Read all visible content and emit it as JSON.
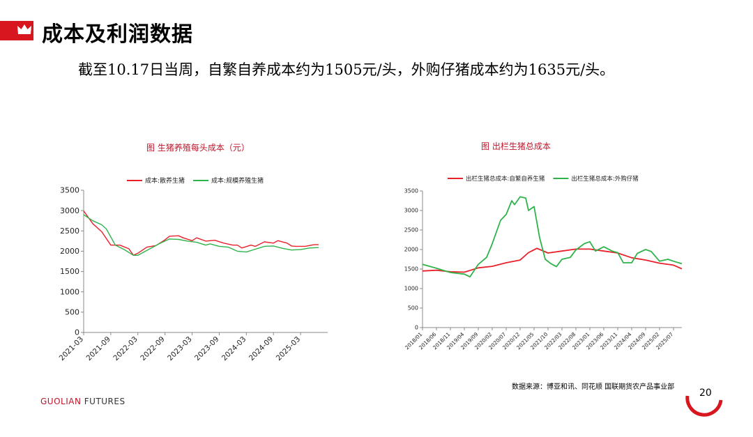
{
  "header": {
    "title": "成本及利润数据",
    "subtitle": "截至10.17日当周，自繁自养成本约为1505元/头，外购仔猪成本约为1635元/头。"
  },
  "footer": {
    "source": "数据来源：博亚和讯、同花顺  国联期货农产品事业部",
    "brand_main": "GUOLIAN",
    "brand_rest": " FUTURES",
    "page_number": "20"
  },
  "colors": {
    "brand_red": "#d7161f",
    "series_red": "#e8202a",
    "series_green": "#2eb34b"
  },
  "chart_data": [
    {
      "type": "line",
      "title": "图  生猪养殖每头成本（元）",
      "ylim": [
        0,
        3500
      ],
      "yticks": [
        0,
        500,
        1000,
        1500,
        2000,
        2500,
        3000,
        3500
      ],
      "x_range": [
        "2021-03",
        "2025-09"
      ],
      "xticks": [
        "2021-03",
        "2021-09",
        "2022-03",
        "2022-09",
        "2023-03",
        "2023-09",
        "2024-03",
        "2024-09",
        "2025-03"
      ],
      "legend_position": "top",
      "grid": false,
      "series": [
        {
          "name": "成本:散养生猪",
          "color": "#e8202a",
          "points": [
            [
              "2021-03",
              2990
            ],
            [
              "2021-05",
              2680
            ],
            [
              "2021-07",
              2480
            ],
            [
              "2021-09",
              2150
            ],
            [
              "2021-11",
              2150
            ],
            [
              "2022-01",
              2060
            ],
            [
              "2022-02",
              1900
            ],
            [
              "2022-03",
              1950
            ],
            [
              "2022-05",
              2100
            ],
            [
              "2022-07",
              2140
            ],
            [
              "2022-09",
              2280
            ],
            [
              "2022-10",
              2370
            ],
            [
              "2022-12",
              2380
            ],
            [
              "2023-01",
              2330
            ],
            [
              "2023-03",
              2260
            ],
            [
              "2023-04",
              2330
            ],
            [
              "2023-06",
              2250
            ],
            [
              "2023-08",
              2270
            ],
            [
              "2023-10",
              2200
            ],
            [
              "2023-12",
              2150
            ],
            [
              "2024-01",
              2150
            ],
            [
              "2024-02",
              2080
            ],
            [
              "2024-04",
              2150
            ],
            [
              "2024-05",
              2120
            ],
            [
              "2024-07",
              2230
            ],
            [
              "2024-09",
              2200
            ],
            [
              "2024-10",
              2260
            ],
            [
              "2024-12",
              2200
            ],
            [
              "2025-01",
              2130
            ],
            [
              "2025-02",
              2120
            ],
            [
              "2025-04",
              2120
            ],
            [
              "2025-06",
              2160
            ],
            [
              "2025-07",
              2160
            ]
          ]
        },
        {
          "name": "成本:规模养殖生猪",
          "color": "#2eb34b",
          "points": [
            [
              "2021-03",
              2900
            ],
            [
              "2021-05",
              2750
            ],
            [
              "2021-07",
              2650
            ],
            [
              "2021-08",
              2550
            ],
            [
              "2021-09",
              2350
            ],
            [
              "2021-10",
              2150
            ],
            [
              "2021-12",
              2040
            ],
            [
              "2022-02",
              1900
            ],
            [
              "2022-03",
              1900
            ],
            [
              "2022-06",
              2080
            ],
            [
              "2022-08",
              2200
            ],
            [
              "2022-10",
              2300
            ],
            [
              "2022-12",
              2290
            ],
            [
              "2023-02",
              2250
            ],
            [
              "2023-04",
              2220
            ],
            [
              "2023-06",
              2150
            ],
            [
              "2023-07",
              2180
            ],
            [
              "2023-09",
              2120
            ],
            [
              "2023-11",
              2100
            ],
            [
              "2024-01",
              2000
            ],
            [
              "2024-03",
              1980
            ],
            [
              "2024-05",
              2050
            ],
            [
              "2024-07",
              2120
            ],
            [
              "2024-09",
              2130
            ],
            [
              "2024-11",
              2070
            ],
            [
              "2025-01",
              2030
            ],
            [
              "2025-03",
              2040
            ],
            [
              "2025-05",
              2080
            ],
            [
              "2025-07",
              2090
            ]
          ]
        }
      ]
    },
    {
      "type": "line",
      "title": "图    出栏生猪总成本",
      "ylim": [
        0,
        3500
      ],
      "yticks": [
        0,
        500,
        1000,
        1500,
        2000,
        2500,
        3000,
        3500
      ],
      "x_range": [
        "2018-01",
        "2025-10"
      ],
      "xticks": [
        "2018/01",
        "2018/06",
        "2018/11",
        "2019/04",
        "2019/09",
        "2020/02",
        "2020/07",
        "2020/12",
        "2021/05",
        "2021/10",
        "2022/03",
        "2022/08",
        "2023/01",
        "2023/06",
        "2023/11",
        "2024/04",
        "2024/09",
        "2025/02",
        "2025/07"
      ],
      "legend_position": "top",
      "grid": false,
      "series": [
        {
          "name": "出栏生猪总成本:自繁自养生猪",
          "color": "#e8202a",
          "points": [
            [
              "2018-01",
              1450
            ],
            [
              "2018-06",
              1470
            ],
            [
              "2018-11",
              1430
            ],
            [
              "2019-04",
              1420
            ],
            [
              "2019-09",
              1530
            ],
            [
              "2020-02",
              1570
            ],
            [
              "2020-07",
              1660
            ],
            [
              "2020-12",
              1730
            ],
            [
              "2021-03",
              1920
            ],
            [
              "2021-06",
              2030
            ],
            [
              "2021-10",
              1910
            ],
            [
              "2022-03",
              1960
            ],
            [
              "2022-08",
              2010
            ],
            [
              "2023-01",
              2010
            ],
            [
              "2023-06",
              1960
            ],
            [
              "2023-11",
              1910
            ],
            [
              "2024-04",
              1790
            ],
            [
              "2024-09",
              1730
            ],
            [
              "2025-02",
              1650
            ],
            [
              "2025-07",
              1600
            ],
            [
              "2025-10",
              1505
            ]
          ]
        },
        {
          "name": "出栏生猪总成本:外购仔猪",
          "color": "#2eb34b",
          "points": [
            [
              "2018-01",
              1620
            ],
            [
              "2018-06",
              1520
            ],
            [
              "2018-11",
              1410
            ],
            [
              "2019-04",
              1370
            ],
            [
              "2019-06",
              1300
            ],
            [
              "2019-09",
              1620
            ],
            [
              "2019-12",
              1800
            ],
            [
              "2020-02",
              2150
            ],
            [
              "2020-05",
              2750
            ],
            [
              "2020-07",
              2900
            ],
            [
              "2020-09",
              3250
            ],
            [
              "2020-10",
              3150
            ],
            [
              "2020-12",
              3350
            ],
            [
              "2021-02",
              3320
            ],
            [
              "2021-03",
              3000
            ],
            [
              "2021-05",
              3100
            ],
            [
              "2021-07",
              2300
            ],
            [
              "2021-09",
              1750
            ],
            [
              "2021-11",
              1640
            ],
            [
              "2022-01",
              1560
            ],
            [
              "2022-03",
              1750
            ],
            [
              "2022-06",
              1800
            ],
            [
              "2022-08",
              1990
            ],
            [
              "2022-11",
              2150
            ],
            [
              "2023-01",
              2200
            ],
            [
              "2023-03",
              1960
            ],
            [
              "2023-06",
              2070
            ],
            [
              "2023-09",
              1960
            ],
            [
              "2023-11",
              1920
            ],
            [
              "2024-01",
              1660
            ],
            [
              "2024-04",
              1660
            ],
            [
              "2024-06",
              1900
            ],
            [
              "2024-09",
              2000
            ],
            [
              "2024-11",
              1950
            ],
            [
              "2025-02",
              1700
            ],
            [
              "2025-05",
              1750
            ],
            [
              "2025-07",
              1700
            ],
            [
              "2025-10",
              1635
            ]
          ]
        }
      ]
    }
  ]
}
